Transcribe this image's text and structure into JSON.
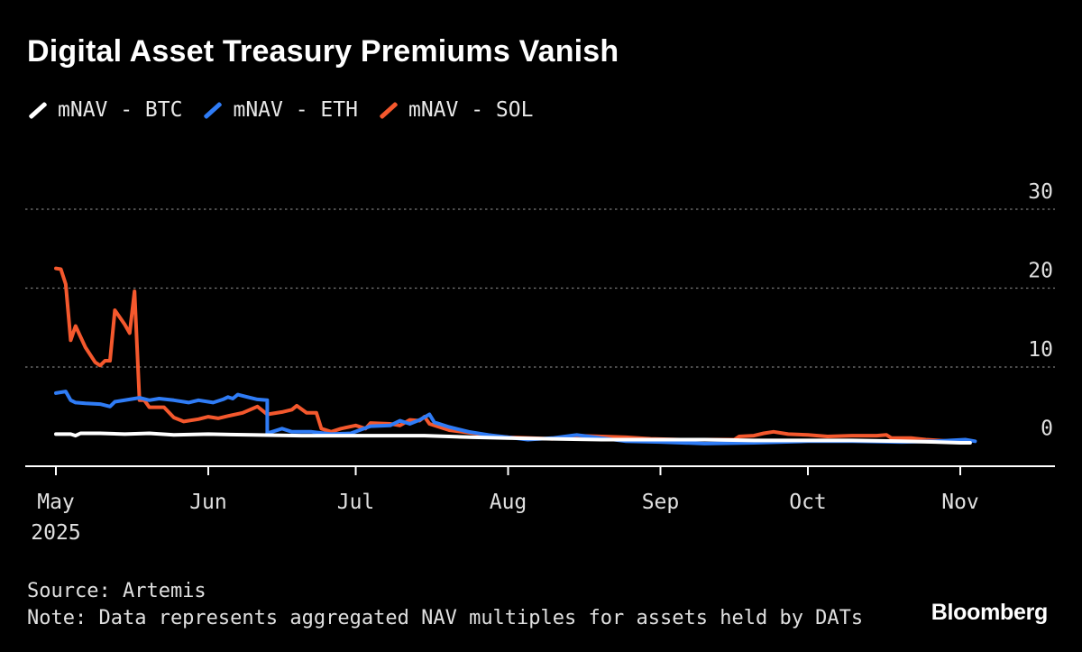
{
  "title": "Digital Asset Treasury Premiums Vanish",
  "source": "Source: Artemis",
  "note": "Note: Data represents aggregated NAV multiples for assets held by DATs",
  "brand": "Bloomberg",
  "colors": {
    "background": "#000000",
    "btc": "#ffffff",
    "eth": "#2f7cf6",
    "sol": "#f4582d",
    "grid": "#7a7a7a",
    "text": "#e0e0e0"
  },
  "chart_data": {
    "type": "line",
    "title": "Digital Asset Treasury Premiums Vanish",
    "xlabel": "",
    "ylabel": "",
    "x_axis": {
      "type": "date",
      "range": [
        "2025-04-30",
        "2025-11-05"
      ],
      "ticks": [
        {
          "date": "2025-05-01",
          "label": "May",
          "sublabel": "2025"
        },
        {
          "date": "2025-06-01",
          "label": "Jun"
        },
        {
          "date": "2025-07-01",
          "label": "Jul"
        },
        {
          "date": "2025-08-01",
          "label": "Aug"
        },
        {
          "date": "2025-09-01",
          "label": "Sep"
        },
        {
          "date": "2025-10-01",
          "label": "Oct"
        },
        {
          "date": "2025-11-01",
          "label": "Nov"
        }
      ]
    },
    "y_axis": {
      "position": "right",
      "ylim": [
        -2.5,
        30
      ],
      "ticks": [
        30,
        20,
        10,
        0
      ],
      "gridlines": [
        30,
        20,
        10
      ],
      "grid_style": "dotted"
    },
    "legend_position": "top-left",
    "series": [
      {
        "name": "mNAV - BTC",
        "color": "#ffffff",
        "points": [
          [
            "2025-05-01",
            1.5
          ],
          [
            "2025-05-04",
            1.5
          ],
          [
            "2025-05-05",
            1.3
          ],
          [
            "2025-05-06",
            1.6
          ],
          [
            "2025-05-10",
            1.6
          ],
          [
            "2025-05-15",
            1.5
          ],
          [
            "2025-05-20",
            1.6
          ],
          [
            "2025-05-25",
            1.4
          ],
          [
            "2025-06-01",
            1.5
          ],
          [
            "2025-06-10",
            1.4
          ],
          [
            "2025-06-20",
            1.3
          ],
          [
            "2025-06-30",
            1.3
          ],
          [
            "2025-07-10",
            1.3
          ],
          [
            "2025-07-15",
            1.3
          ],
          [
            "2025-07-20",
            1.2
          ],
          [
            "2025-07-25",
            1.1
          ],
          [
            "2025-08-01",
            1.0
          ],
          [
            "2025-08-10",
            0.9
          ],
          [
            "2025-08-20",
            0.8
          ],
          [
            "2025-09-01",
            0.8
          ],
          [
            "2025-09-10",
            0.8
          ],
          [
            "2025-09-20",
            0.7
          ],
          [
            "2025-10-01",
            0.7
          ],
          [
            "2025-10-10",
            0.7
          ],
          [
            "2025-10-20",
            0.6
          ],
          [
            "2025-10-27",
            0.5
          ],
          [
            "2025-11-01",
            0.4
          ],
          [
            "2025-11-03",
            0.4
          ]
        ]
      },
      {
        "name": "mNAV - ETH",
        "color": "#2f7cf6",
        "points": [
          [
            "2025-05-01",
            6.7
          ],
          [
            "2025-05-03",
            6.9
          ],
          [
            "2025-05-04",
            5.8
          ],
          [
            "2025-05-05",
            5.5
          ],
          [
            "2025-05-07",
            5.4
          ],
          [
            "2025-05-10",
            5.3
          ],
          [
            "2025-05-12",
            5.0
          ],
          [
            "2025-05-13",
            5.6
          ],
          [
            "2025-05-16",
            5.9
          ],
          [
            "2025-05-18",
            6.1
          ],
          [
            "2025-05-20",
            5.8
          ],
          [
            "2025-05-22",
            6.0
          ],
          [
            "2025-05-25",
            5.8
          ],
          [
            "2025-05-28",
            5.5
          ],
          [
            "2025-05-30",
            5.8
          ],
          [
            "2025-06-02",
            5.5
          ],
          [
            "2025-06-04",
            5.9
          ],
          [
            "2025-06-05",
            6.2
          ],
          [
            "2025-06-06",
            6.0
          ],
          [
            "2025-06-07",
            6.5
          ],
          [
            "2025-06-09",
            6.2
          ],
          [
            "2025-06-11",
            5.9
          ],
          [
            "2025-06-13",
            5.8
          ],
          [
            "2025-06-13",
            1.6
          ],
          [
            "2025-06-16",
            2.2
          ],
          [
            "2025-06-18",
            1.8
          ],
          [
            "2025-06-22",
            1.8
          ],
          [
            "2025-06-26",
            1.5
          ],
          [
            "2025-06-30",
            1.6
          ],
          [
            "2025-07-04",
            2.5
          ],
          [
            "2025-07-08",
            2.6
          ],
          [
            "2025-07-10",
            3.2
          ],
          [
            "2025-07-12",
            2.8
          ],
          [
            "2025-07-14",
            3.3
          ],
          [
            "2025-07-16",
            4.0
          ],
          [
            "2025-07-17",
            3.0
          ],
          [
            "2025-07-20",
            2.4
          ],
          [
            "2025-07-24",
            1.8
          ],
          [
            "2025-07-28",
            1.4
          ],
          [
            "2025-08-01",
            1.1
          ],
          [
            "2025-08-05",
            0.8
          ],
          [
            "2025-08-10",
            1.0
          ],
          [
            "2025-08-15",
            1.4
          ],
          [
            "2025-08-20",
            1.0
          ],
          [
            "2025-08-25",
            0.6
          ],
          [
            "2025-09-01",
            0.5
          ],
          [
            "2025-09-10",
            0.3
          ],
          [
            "2025-09-20",
            0.4
          ],
          [
            "2025-10-01",
            0.6
          ],
          [
            "2025-10-10",
            0.6
          ],
          [
            "2025-10-20",
            0.5
          ],
          [
            "2025-10-27",
            0.6
          ],
          [
            "2025-11-02",
            0.8
          ],
          [
            "2025-11-04",
            0.6
          ]
        ]
      },
      {
        "name": "mNAV - SOL",
        "color": "#f4582d",
        "points": [
          [
            "2025-05-01",
            22.5
          ],
          [
            "2025-05-02",
            22.4
          ],
          [
            "2025-05-03",
            20.5
          ],
          [
            "2025-05-04",
            13.4
          ],
          [
            "2025-05-05",
            15.2
          ],
          [
            "2025-05-07",
            12.5
          ],
          [
            "2025-05-09",
            10.6
          ],
          [
            "2025-05-10",
            10.2
          ],
          [
            "2025-05-11",
            10.8
          ],
          [
            "2025-05-12",
            10.8
          ],
          [
            "2025-05-13",
            17.2
          ],
          [
            "2025-05-15",
            15.4
          ],
          [
            "2025-05-16",
            14.3
          ],
          [
            "2025-05-17",
            19.6
          ],
          [
            "2025-05-18",
            5.8
          ],
          [
            "2025-05-19",
            5.8
          ],
          [
            "2025-05-20",
            4.9
          ],
          [
            "2025-05-22",
            4.9
          ],
          [
            "2025-05-23",
            4.9
          ],
          [
            "2025-05-25",
            3.6
          ],
          [
            "2025-05-27",
            3.1
          ],
          [
            "2025-05-30",
            3.4
          ],
          [
            "2025-06-01",
            3.7
          ],
          [
            "2025-06-03",
            3.5
          ],
          [
            "2025-06-05",
            3.8
          ],
          [
            "2025-06-08",
            4.2
          ],
          [
            "2025-06-11",
            5.0
          ],
          [
            "2025-06-13",
            4.0
          ],
          [
            "2025-06-16",
            4.3
          ],
          [
            "2025-06-18",
            4.6
          ],
          [
            "2025-06-19",
            5.1
          ],
          [
            "2025-06-21",
            4.2
          ],
          [
            "2025-06-23",
            4.2
          ],
          [
            "2025-06-24",
            2.2
          ],
          [
            "2025-06-26",
            1.8
          ],
          [
            "2025-06-28",
            2.2
          ],
          [
            "2025-07-01",
            2.6
          ],
          [
            "2025-07-03",
            2.2
          ],
          [
            "2025-07-04",
            2.9
          ],
          [
            "2025-07-08",
            2.8
          ],
          [
            "2025-07-10",
            2.6
          ],
          [
            "2025-07-12",
            3.3
          ],
          [
            "2025-07-14",
            3.2
          ],
          [
            "2025-07-15",
            3.7
          ],
          [
            "2025-07-16",
            2.8
          ],
          [
            "2025-07-20",
            2.0
          ],
          [
            "2025-07-25",
            1.6
          ],
          [
            "2025-07-30",
            1.2
          ],
          [
            "2025-08-01",
            1.1
          ],
          [
            "2025-08-10",
            0.9
          ],
          [
            "2025-08-15",
            1.3
          ],
          [
            "2025-08-20",
            1.2
          ],
          [
            "2025-08-25",
            1.1
          ],
          [
            "2025-08-30",
            0.9
          ],
          [
            "2025-09-05",
            0.8
          ],
          [
            "2025-09-12",
            0.8
          ],
          [
            "2025-09-16",
            0.8
          ],
          [
            "2025-09-17",
            1.2
          ],
          [
            "2025-09-20",
            1.3
          ],
          [
            "2025-09-22",
            1.6
          ],
          [
            "2025-09-24",
            1.8
          ],
          [
            "2025-09-27",
            1.5
          ],
          [
            "2025-10-01",
            1.4
          ],
          [
            "2025-10-05",
            1.2
          ],
          [
            "2025-10-10",
            1.3
          ],
          [
            "2025-10-15",
            1.3
          ],
          [
            "2025-10-17",
            1.4
          ],
          [
            "2025-10-18",
            1.0
          ],
          [
            "2025-10-22",
            1.0
          ],
          [
            "2025-10-25",
            0.8
          ],
          [
            "2025-10-30",
            0.6
          ],
          [
            "2025-11-03",
            0.5
          ]
        ]
      }
    ]
  }
}
